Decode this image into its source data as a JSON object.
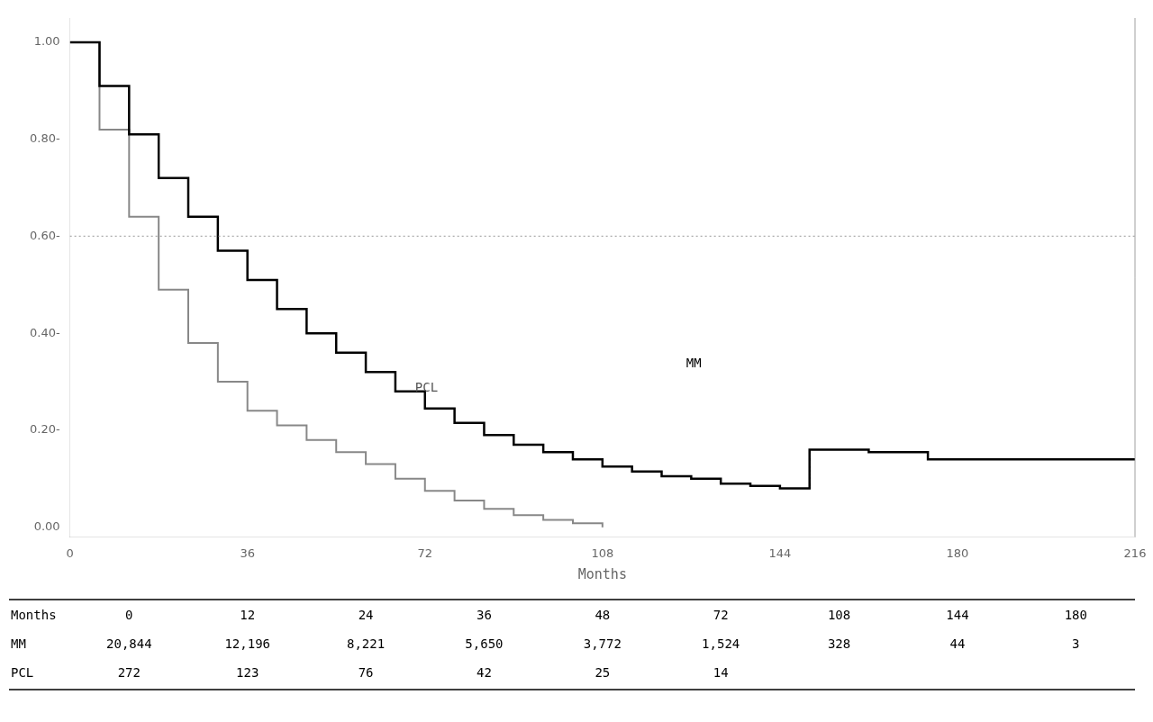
{
  "chart_data": {
    "type": "step",
    "xlabel": "Months",
    "series": [
      {
        "name": "MM",
        "color": "#000000",
        "x": [
          0,
          6,
          12,
          18,
          24,
          30,
          36,
          42,
          48,
          54,
          60,
          66,
          72,
          78,
          84,
          90,
          96,
          102,
          108,
          114,
          120,
          126,
          132,
          138,
          144,
          150,
          156,
          162,
          168,
          174,
          180,
          216
        ],
        "values": [
          1.0,
          0.91,
          0.81,
          0.72,
          0.64,
          0.57,
          0.51,
          0.45,
          0.4,
          0.36,
          0.32,
          0.28,
          0.245,
          0.215,
          0.19,
          0.17,
          0.155,
          0.14,
          0.125,
          0.115,
          0.105,
          0.1,
          0.09,
          0.085,
          0.08,
          0.16,
          0.16,
          0.155,
          0.155,
          0.14,
          0.14,
          0.14
        ]
      },
      {
        "name": "PCL",
        "color": "#888888",
        "x": [
          0,
          6,
          12,
          18,
          24,
          30,
          36,
          42,
          48,
          54,
          60,
          66,
          72,
          78,
          84,
          90,
          96,
          102,
          108
        ],
        "values": [
          1.0,
          0.82,
          0.64,
          0.49,
          0.38,
          0.3,
          0.24,
          0.21,
          0.18,
          0.155,
          0.13,
          0.1,
          0.075,
          0.055,
          0.038,
          0.025,
          0.015,
          0.008,
          0.0
        ]
      }
    ],
    "xlim": [
      0,
      216
    ],
    "ylim": [
      -0.02,
      1.05
    ],
    "xticks": [
      0,
      36,
      72,
      108,
      144,
      180,
      216
    ],
    "yticks": [
      {
        "value": 0.0,
        "label": "0.00"
      },
      {
        "value": 0.2,
        "label": "0.20-"
      },
      {
        "value": 0.4,
        "label": "0.40-"
      },
      {
        "value": 0.6,
        "label": "0.60-"
      },
      {
        "value": 0.8,
        "label": "0.80-"
      },
      {
        "value": 1.0,
        "label": "1.00"
      }
    ],
    "grid": false,
    "reference_lines": [
      {
        "y": 0.6,
        "color": "#aaaaaa",
        "line_style": "dotted"
      }
    ],
    "annotations": [
      {
        "text": "MM",
        "x": 125,
        "y": 0.33,
        "color": "#000000"
      },
      {
        "text": "PCL",
        "x": 70,
        "y": 0.28,
        "color": "#555555"
      }
    ],
    "table": {
      "header": "Months",
      "columns": [
        0,
        12,
        24,
        36,
        48,
        72,
        108,
        144,
        180
      ],
      "rows": [
        {
          "name": "MM",
          "values": [
            20844,
            12196,
            8221,
            5650,
            3772,
            1524,
            328,
            44,
            3
          ],
          "value_labels": [
            "20,844",
            "12,196",
            "8,221",
            "5,650",
            "3,772",
            "1,524",
            "328",
            "44",
            "3"
          ]
        },
        {
          "name": "PCL",
          "values": [
            272,
            123,
            76,
            42,
            25,
            14,
            null,
            null,
            null
          ]
        }
      ]
    }
  }
}
